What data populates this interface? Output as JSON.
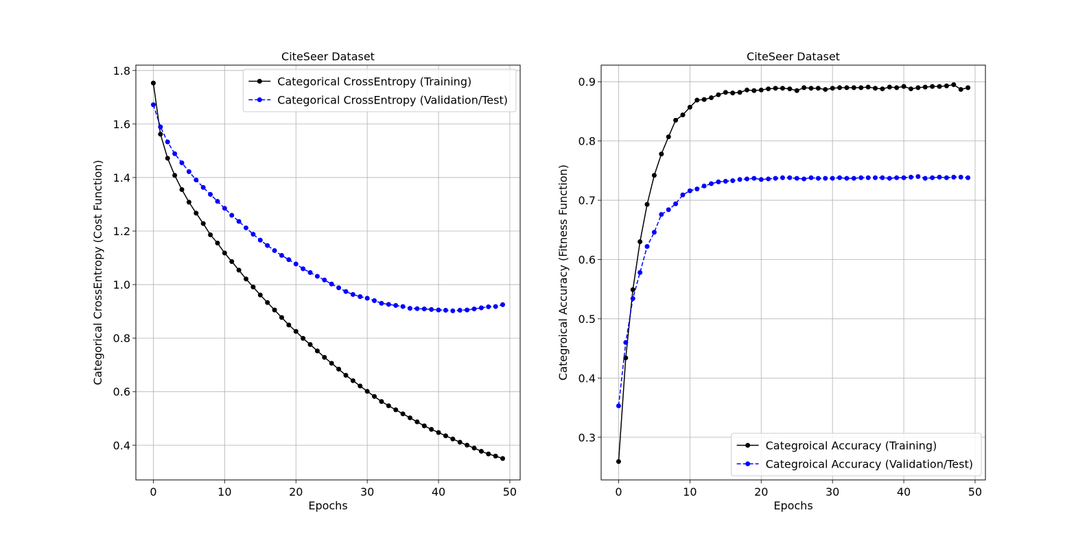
{
  "chart_data": [
    {
      "type": "line",
      "title": "CiteSeer Dataset",
      "xlabel": "Epochs",
      "ylabel": "Categorical CrossEntropy (Cost Function)",
      "xlim": [
        -2.45,
        51.45
      ],
      "ylim": [
        0.27,
        1.82
      ],
      "xticks": [
        0,
        10,
        20,
        30,
        40,
        50
      ],
      "yticks": [
        0.4,
        0.6,
        0.8,
        1.0,
        1.2,
        1.4,
        1.6,
        1.8
      ],
      "ytick_labels": [
        "0.4",
        "0.6",
        "0.8",
        "1.0",
        "1.2",
        "1.4",
        "1.6",
        "1.8"
      ],
      "grid": true,
      "legend_position": "top-right",
      "x": [
        0,
        1,
        2,
        3,
        4,
        5,
        6,
        7,
        8,
        9,
        10,
        11,
        12,
        13,
        14,
        15,
        16,
        17,
        18,
        19,
        20,
        21,
        22,
        23,
        24,
        25,
        26,
        27,
        28,
        29,
        30,
        31,
        32,
        33,
        34,
        35,
        36,
        37,
        38,
        39,
        40,
        41,
        42,
        43,
        44,
        45,
        46,
        47,
        48,
        49
      ],
      "series": [
        {
          "name": "Categorical CrossEntropy (Training)",
          "color": "#000000",
          "linestyle": "solid",
          "marker": "circle",
          "values": [
            1.753,
            1.562,
            1.472,
            1.408,
            1.355,
            1.308,
            1.267,
            1.228,
            1.186,
            1.155,
            1.118,
            1.086,
            1.054,
            1.021,
            0.991,
            0.961,
            0.933,
            0.905,
            0.877,
            0.849,
            0.825,
            0.799,
            0.776,
            0.752,
            0.728,
            0.706,
            0.684,
            0.661,
            0.641,
            0.621,
            0.601,
            0.582,
            0.563,
            0.547,
            0.532,
            0.517,
            0.502,
            0.487,
            0.472,
            0.459,
            0.447,
            0.435,
            0.423,
            0.411,
            0.4,
            0.389,
            0.377,
            0.367,
            0.359,
            0.35
          ]
        },
        {
          "name": "Categorical CrossEntropy (Validation/Test)",
          "color": "#0000ff",
          "linestyle": "dashed",
          "marker": "circle",
          "values": [
            1.672,
            1.589,
            1.533,
            1.489,
            1.455,
            1.422,
            1.391,
            1.363,
            1.337,
            1.311,
            1.285,
            1.259,
            1.236,
            1.212,
            1.188,
            1.166,
            1.146,
            1.127,
            1.109,
            1.093,
            1.077,
            1.059,
            1.045,
            1.031,
            1.017,
            1.002,
            0.988,
            0.974,
            0.963,
            0.955,
            0.949,
            0.94,
            0.93,
            0.926,
            0.922,
            0.918,
            0.911,
            0.91,
            0.909,
            0.907,
            0.905,
            0.904,
            0.902,
            0.904,
            0.905,
            0.909,
            0.913,
            0.917,
            0.918,
            0.925
          ]
        }
      ]
    },
    {
      "type": "line",
      "title": "CiteSeer Dataset",
      "xlabel": "Epochs",
      "ylabel": "Categroical Accuracy (Fitness Function)",
      "xlim": [
        -2.45,
        51.45
      ],
      "ylim": [
        0.228,
        0.928
      ],
      "xticks": [
        0,
        10,
        20,
        30,
        40,
        50
      ],
      "yticks": [
        0.3,
        0.4,
        0.5,
        0.6,
        0.7,
        0.8,
        0.9
      ],
      "ytick_labels": [
        "0.3",
        "0.4",
        "0.5",
        "0.6",
        "0.7",
        "0.8",
        "0.9"
      ],
      "grid": true,
      "legend_position": "bottom-right",
      "x": [
        0,
        1,
        2,
        3,
        4,
        5,
        6,
        7,
        8,
        9,
        10,
        11,
        12,
        13,
        14,
        15,
        16,
        17,
        18,
        19,
        20,
        21,
        22,
        23,
        24,
        25,
        26,
        27,
        28,
        29,
        30,
        31,
        32,
        33,
        34,
        35,
        36,
        37,
        38,
        39,
        40,
        41,
        42,
        43,
        44,
        45,
        46,
        47,
        48,
        49
      ],
      "series": [
        {
          "name": "Categroical Accuracy (Training)",
          "color": "#000000",
          "linestyle": "solid",
          "marker": "circle",
          "values": [
            0.259,
            0.434,
            0.549,
            0.63,
            0.693,
            0.742,
            0.778,
            0.807,
            0.835,
            0.844,
            0.857,
            0.869,
            0.87,
            0.873,
            0.878,
            0.882,
            0.881,
            0.882,
            0.886,
            0.885,
            0.886,
            0.888,
            0.889,
            0.889,
            0.888,
            0.885,
            0.89,
            0.889,
            0.889,
            0.887,
            0.889,
            0.89,
            0.89,
            0.89,
            0.89,
            0.891,
            0.889,
            0.888,
            0.891,
            0.89,
            0.892,
            0.888,
            0.89,
            0.891,
            0.892,
            0.892,
            0.893,
            0.895,
            0.887,
            0.89
          ]
        },
        {
          "name": "Categroical Accuracy (Validation/Test)",
          "color": "#0000ff",
          "linestyle": "dashed",
          "marker": "circle",
          "values": [
            0.353,
            0.46,
            0.534,
            0.578,
            0.622,
            0.646,
            0.676,
            0.684,
            0.694,
            0.709,
            0.716,
            0.719,
            0.724,
            0.728,
            0.731,
            0.732,
            0.733,
            0.735,
            0.736,
            0.737,
            0.735,
            0.736,
            0.737,
            0.738,
            0.738,
            0.737,
            0.736,
            0.738,
            0.737,
            0.737,
            0.737,
            0.738,
            0.737,
            0.737,
            0.738,
            0.738,
            0.738,
            0.738,
            0.737,
            0.738,
            0.738,
            0.739,
            0.74,
            0.737,
            0.738,
            0.739,
            0.738,
            0.739,
            0.739,
            0.738
          ]
        }
      ]
    }
  ]
}
